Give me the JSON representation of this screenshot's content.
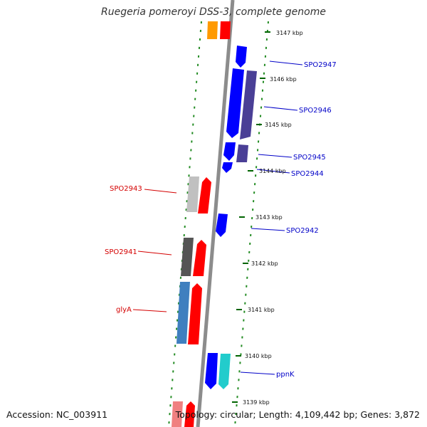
{
  "title": "Ruegeria pomeroyi DSS-3, complete genome",
  "footer": {
    "accession": "Accession: NC_003911",
    "topology": "Topology: circular; Length: 4,109,442 bp; Genes: 3,872"
  },
  "ticks": [
    "3147 kbp",
    "3146 kbp",
    "3145 kbp",
    "3144 kbp",
    "3143 kbp",
    "3142 kbp",
    "3141 kbp",
    "3140 kbp",
    "3139 kbp"
  ],
  "genes": {
    "forward": [
      "SPO2943",
      "SPO2941",
      "glyA"
    ],
    "reverse": [
      "SPO2947",
      "SPO2946",
      "SPO2945",
      "SPO2944",
      "SPO2942",
      "ppnK"
    ]
  },
  "colors": {
    "forward_label": "#d40000",
    "reverse_label": "#0000c8",
    "forward_gene": "#ff0000",
    "reverse_gene": "#0000ff",
    "cog_purple": "#4a3f96",
    "cog_gray_light": "#c0c0c0",
    "cog_gray_dark": "#555555",
    "cog_steelblue": "#3f7fbf",
    "cog_orange": "#ff9900",
    "cog_cyan": "#22cccc",
    "cog_pink": "#f08080",
    "backbone": "#8c8c8c",
    "dotted_ring": "#228b22"
  }
}
